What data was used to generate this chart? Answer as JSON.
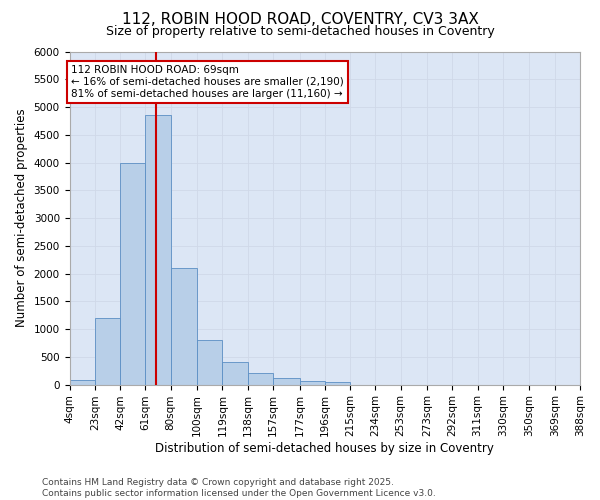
{
  "title1": "112, ROBIN HOOD ROAD, COVENTRY, CV3 3AX",
  "title2": "Size of property relative to semi-detached houses in Coventry",
  "xlabel": "Distribution of semi-detached houses by size in Coventry",
  "ylabel": "Number of semi-detached properties",
  "annotation_line1": "112 ROBIN HOOD ROAD: 69sqm",
  "annotation_line2": "← 16% of semi-detached houses are smaller (2,190)",
  "annotation_line3": "81% of semi-detached houses are larger (11,160) →",
  "footer_line1": "Contains HM Land Registry data © Crown copyright and database right 2025.",
  "footer_line2": "Contains public sector information licensed under the Open Government Licence v3.0.",
  "property_size": 69,
  "bin_edges": [
    4,
    23,
    42,
    61,
    80,
    100,
    119,
    138,
    157,
    177,
    196,
    215,
    234,
    253,
    273,
    292,
    311,
    330,
    350,
    369,
    388
  ],
  "bin_labels": [
    "4sqm",
    "23sqm",
    "42sqm",
    "61sqm",
    "80sqm",
    "100sqm",
    "119sqm",
    "138sqm",
    "157sqm",
    "177sqm",
    "196sqm",
    "215sqm",
    "234sqm",
    "253sqm",
    "273sqm",
    "292sqm",
    "311sqm",
    "330sqm",
    "350sqm",
    "369sqm",
    "388sqm"
  ],
  "bar_heights": [
    80,
    1200,
    4000,
    4850,
    2100,
    800,
    400,
    200,
    110,
    70,
    50,
    0,
    0,
    0,
    0,
    0,
    0,
    0,
    0,
    0
  ],
  "bar_color": "#b8cfe8",
  "bar_edgecolor": "#5b8ec4",
  "vline_color": "#cc0000",
  "vline_x": 69,
  "annotation_box_color": "#cc0000",
  "ylim": [
    0,
    6000
  ],
  "yticks": [
    0,
    500,
    1000,
    1500,
    2000,
    2500,
    3000,
    3500,
    4000,
    4500,
    5000,
    5500,
    6000
  ],
  "grid_color": "#d0d8e8",
  "background_color": "#dce6f5",
  "fig_background": "#ffffff",
  "title_fontsize": 11,
  "subtitle_fontsize": 9,
  "axis_label_fontsize": 8.5,
  "tick_fontsize": 7.5,
  "footer_fontsize": 6.5,
  "annotation_fontsize": 7.5
}
